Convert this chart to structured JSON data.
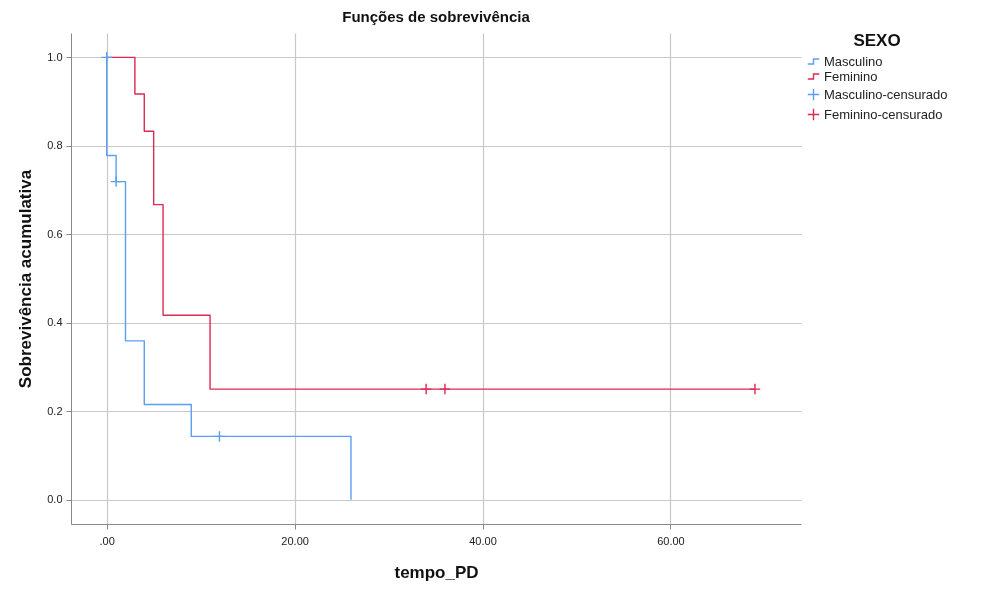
{
  "chart_data": {
    "type": "step",
    "title": "Funções de sobrevivência",
    "xlabel": "tempo_PD",
    "ylabel": "Sobrevivência acumulativa",
    "legend_title": "SEXO",
    "series": [
      {
        "name": "Masculino",
        "color": "#5b9ff0",
        "x": [
          0,
          0,
          1,
          2,
          4,
          9,
          26
        ],
        "values": [
          1.0,
          0.778,
          0.719,
          0.359,
          0.215,
          0.143,
          0.0
        ]
      },
      {
        "name": "Feminino",
        "color": "#dc2a52",
        "x": [
          0,
          3,
          4,
          5,
          6,
          11,
          69
        ],
        "values": [
          1.0,
          0.917,
          0.833,
          0.667,
          0.417,
          0.25,
          0.25
        ]
      },
      {
        "name": "Masculino-censurado",
        "type": "scatter",
        "marker": "cross",
        "color": "#5b9ff0",
        "x": [
          0,
          1,
          12
        ],
        "values": [
          1.0,
          0.719,
          0.143
        ]
      },
      {
        "name": "Feminino-censurado",
        "type": "scatter",
        "marker": "cross",
        "color": "#dc2a52",
        "x": [
          34,
          36,
          69
        ],
        "values": [
          0.25,
          0.25,
          0.25
        ]
      }
    ],
    "xlim": [
      -3.8,
      73.9
    ],
    "xticks": [
      {
        "value": 0,
        "label": ".00"
      },
      {
        "value": 20,
        "label": "20.00"
      },
      {
        "value": 40,
        "label": "40.00"
      },
      {
        "value": 60,
        "label": "60.00"
      }
    ],
    "ylim": [
      -0.055,
      1.055
    ],
    "yticks": [
      {
        "value": 0,
        "label": "0.0"
      },
      {
        "value": 0.2,
        "label": "0.2"
      },
      {
        "value": 0.4,
        "label": "0.4"
      },
      {
        "value": 0.6,
        "label": "0.6"
      },
      {
        "value": 0.8,
        "label": "0.8"
      },
      {
        "value": 1,
        "label": "1.0"
      }
    ],
    "grid": true,
    "legend": "top right"
  }
}
